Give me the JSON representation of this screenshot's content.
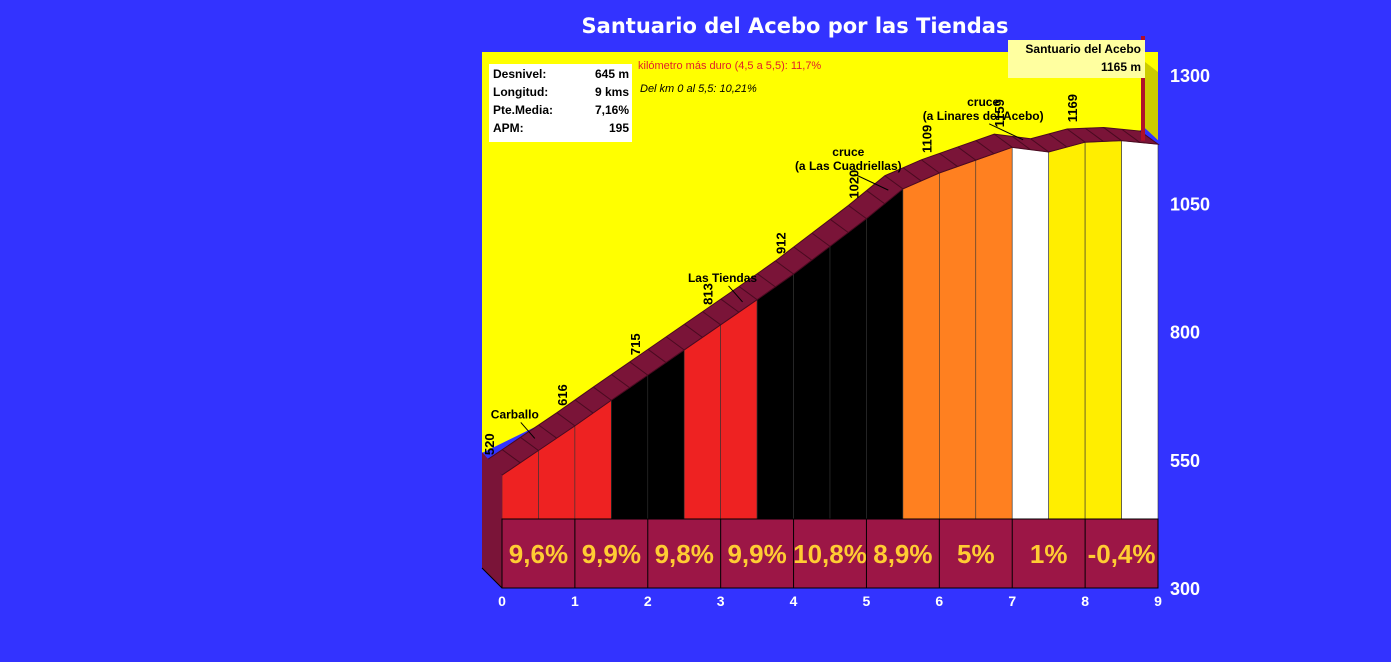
{
  "title": "Santuario del Acebo por las Tiendas",
  "stats": [
    {
      "label": "Desnivel:",
      "value": "645 m"
    },
    {
      "label": "Longitud:",
      "value": "9 kms"
    },
    {
      "label": "Pte.Media:",
      "value": "7,16%"
    },
    {
      "label": "APM:",
      "value": "195"
    }
  ],
  "notes": {
    "hardest_km": "kilómetro más duro (4,5 a 5,5):  11,7%",
    "section": "Del km 0 al 5,5:  10,21%"
  },
  "summit": {
    "name": "Santuario del Acebo",
    "altitude": "1165 m"
  },
  "colors": {
    "background": "#3333ff",
    "panel": "#ffff00",
    "panel_side": "#cccc00",
    "road": "#7a1438",
    "base": "#9c1646",
    "percent_text": "#ffcc33",
    "red": "#ee2222",
    "black": "#000000",
    "orange": "#ff8020",
    "white": "#ffffff",
    "yellow": "#ffee00"
  },
  "chart_data": {
    "type": "area",
    "title": "Santuario del Acebo por las Tiendas",
    "xlabel": "",
    "ylabel": "",
    "xlim": [
      0,
      9
    ],
    "ylim": [
      300,
      1300
    ],
    "x_ticks": [
      "0",
      "1",
      "2",
      "3",
      "4",
      "5",
      "6",
      "7",
      "8",
      "9"
    ],
    "y_ticks": [
      "300",
      "550",
      "800",
      "1050",
      "1300"
    ],
    "profile": [
      {
        "x": 0,
        "y": 520
      },
      {
        "x": 0.5,
        "y": 568
      },
      {
        "x": 1,
        "y": 616
      },
      {
        "x": 1.5,
        "y": 666
      },
      {
        "x": 2,
        "y": 715
      },
      {
        "x": 2.5,
        "y": 764
      },
      {
        "x": 3,
        "y": 813
      },
      {
        "x": 3.5,
        "y": 862
      },
      {
        "x": 4,
        "y": 912
      },
      {
        "x": 4.5,
        "y": 966
      },
      {
        "x": 5,
        "y": 1020
      },
      {
        "x": 5.5,
        "y": 1078
      },
      {
        "x": 6,
        "y": 1109
      },
      {
        "x": 6.5,
        "y": 1134
      },
      {
        "x": 7,
        "y": 1159
      },
      {
        "x": 7.5,
        "y": 1150
      },
      {
        "x": 8,
        "y": 1169
      },
      {
        "x": 8.5,
        "y": 1172
      },
      {
        "x": 9,
        "y": 1165
      }
    ],
    "segments": [
      {
        "from": 0,
        "to": 0.5,
        "color": "red"
      },
      {
        "from": 0.5,
        "to": 1,
        "color": "red"
      },
      {
        "from": 1,
        "to": 1.5,
        "color": "red"
      },
      {
        "from": 1.5,
        "to": 2,
        "color": "black"
      },
      {
        "from": 2,
        "to": 2.5,
        "color": "black"
      },
      {
        "from": 2.5,
        "to": 3,
        "color": "red"
      },
      {
        "from": 3,
        "to": 3.5,
        "color": "red"
      },
      {
        "from": 3.5,
        "to": 4,
        "color": "black"
      },
      {
        "from": 4,
        "to": 4.5,
        "color": "black"
      },
      {
        "from": 4.5,
        "to": 5,
        "color": "black"
      },
      {
        "from": 5,
        "to": 5.5,
        "color": "black"
      },
      {
        "from": 5.5,
        "to": 6,
        "color": "orange"
      },
      {
        "from": 6,
        "to": 6.5,
        "color": "orange"
      },
      {
        "from": 6.5,
        "to": 7,
        "color": "orange"
      },
      {
        "from": 7,
        "to": 7.5,
        "color": "white"
      },
      {
        "from": 7.5,
        "to": 8,
        "color": "yellow"
      },
      {
        "from": 8,
        "to": 8.5,
        "color": "yellow"
      },
      {
        "from": 8.5,
        "to": 9,
        "color": "white"
      }
    ],
    "km_percent": [
      {
        "from": 0,
        "to": 1,
        "label": "9,6%"
      },
      {
        "from": 1,
        "to": 2,
        "label": "9,9%"
      },
      {
        "from": 2,
        "to": 3,
        "label": "9,8%"
      },
      {
        "from": 3,
        "to": 4,
        "label": "9,9%"
      },
      {
        "from": 4,
        "to": 5,
        "label": "10,8%"
      },
      {
        "from": 5,
        "to": 6,
        "label": "8,9%"
      },
      {
        "from": 6,
        "to": 7,
        "label": "5%"
      },
      {
        "from": 7,
        "to": 8,
        "label": "1%"
      },
      {
        "from": 8,
        "to": 9,
        "label": "-0,4%"
      }
    ],
    "altitude_labels": [
      {
        "x": 0,
        "y": 520,
        "label": "520"
      },
      {
        "x": 1,
        "y": 616,
        "label": "616"
      },
      {
        "x": 2,
        "y": 715,
        "label": "715"
      },
      {
        "x": 3,
        "y": 813,
        "label": "813"
      },
      {
        "x": 4,
        "y": 912,
        "label": "912"
      },
      {
        "x": 5,
        "y": 1020,
        "label": "1020"
      },
      {
        "x": 6,
        "y": 1109,
        "label": "1109"
      },
      {
        "x": 7,
        "y": 1159,
        "label": "1159"
      },
      {
        "x": 8,
        "y": 1169,
        "label": "1169"
      }
    ],
    "places": [
      {
        "x": 0.45,
        "y": 576,
        "lines": [
          "Carballo"
        ]
      },
      {
        "x": 3.3,
        "y": 842,
        "lines": [
          "Las Tiendas"
        ]
      },
      {
        "x": 5.3,
        "y": 1060,
        "lines": [
          "cruce",
          "(a Las Cuadriellas)"
        ]
      },
      {
        "x": 7.15,
        "y": 1158,
        "lines": [
          "cruce",
          "(a Linares del Acebo)"
        ]
      }
    ]
  }
}
